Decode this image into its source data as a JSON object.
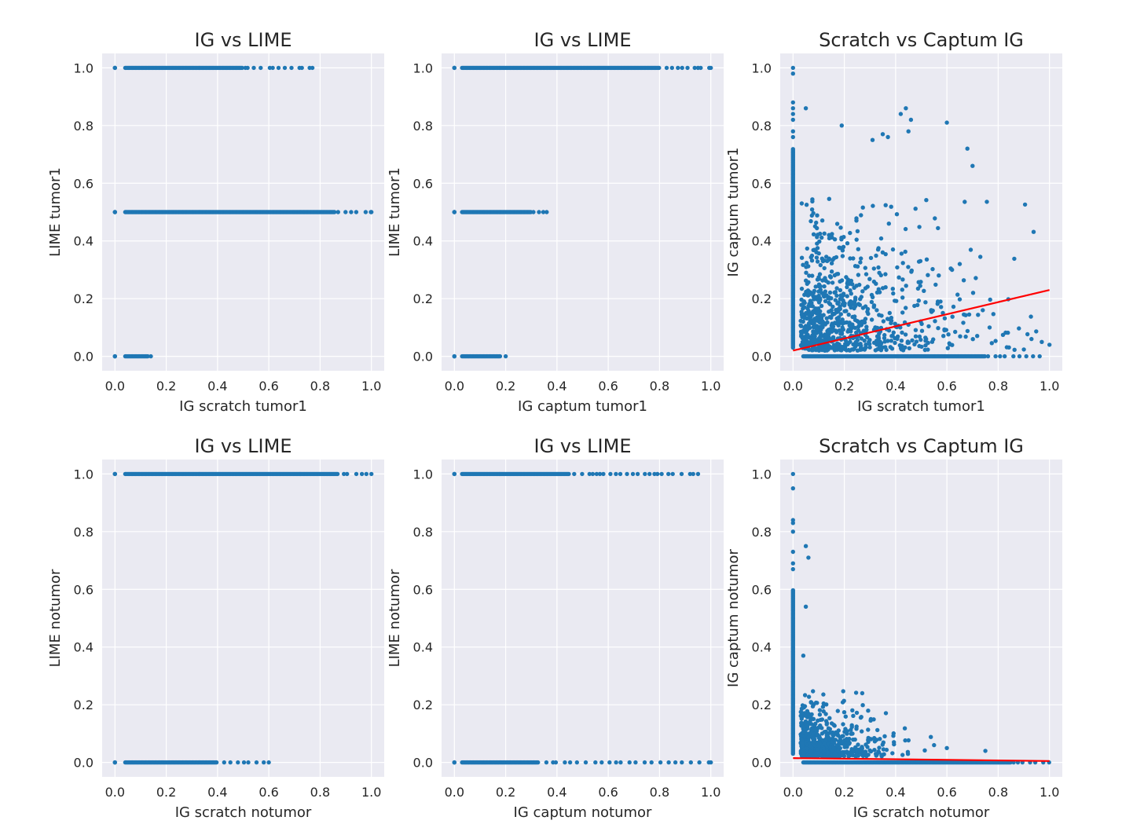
{
  "chart_data": [
    {
      "type": "scatter",
      "title": "IG vs LIME",
      "xlabel": "IG scratch tumor1",
      "ylabel": "LIME tumor1",
      "xlim": [
        -0.05,
        1.05
      ],
      "ylim": [
        -0.05,
        1.05
      ],
      "xticks": [
        "0.0",
        "0.2",
        "0.4",
        "0.6",
        "0.8",
        "1.0"
      ],
      "yticks": [
        "0.0",
        "0.2",
        "0.4",
        "0.6",
        "0.8",
        "1.0"
      ],
      "grid": true,
      "color": "#1f77b4",
      "bands": [
        {
          "y": 1.0,
          "x_range": [
            0.04,
            0.5
          ],
          "sparse_to": 0.77
        },
        {
          "y": 0.5,
          "x_range": [
            0.04,
            0.86
          ],
          "sparse_to": 1.0
        },
        {
          "y": 0.0,
          "x_range": [
            0.04,
            0.13
          ],
          "sparse_to": 0.14
        }
      ],
      "clusters_at_x0": [
        0.0,
        0.5,
        1.0
      ]
    },
    {
      "type": "scatter",
      "title": "IG vs LIME",
      "xlabel": "IG captum tumor1",
      "ylabel": "LIME tumor1",
      "xlim": [
        -0.05,
        1.05
      ],
      "ylim": [
        -0.05,
        1.05
      ],
      "xticks": [
        "0.0",
        "0.2",
        "0.4",
        "0.6",
        "0.8",
        "1.0"
      ],
      "yticks": [
        "0.0",
        "0.2",
        "0.4",
        "0.6",
        "0.8",
        "1.0"
      ],
      "grid": true,
      "color": "#1f77b4",
      "bands": [
        {
          "y": 1.0,
          "x_range": [
            0.03,
            0.8
          ],
          "sparse_to": 1.0
        },
        {
          "y": 0.5,
          "x_range": [
            0.03,
            0.3
          ],
          "sparse_to": 0.36
        },
        {
          "y": 0.0,
          "x_range": [
            0.03,
            0.18
          ],
          "sparse_to": 0.2
        }
      ],
      "clusters_at_x0": [
        0.0,
        0.5,
        1.0
      ]
    },
    {
      "type": "scatter",
      "title": "Scratch vs Captum IG",
      "xlabel": "IG scratch tumor1",
      "ylabel": "IG captum tumor1",
      "xlim": [
        -0.05,
        1.05
      ],
      "ylim": [
        -0.05,
        1.05
      ],
      "xticks": [
        "0.0",
        "0.2",
        "0.4",
        "0.6",
        "0.8",
        "1.0"
      ],
      "yticks": [
        "0.0",
        "0.2",
        "0.4",
        "0.6",
        "0.8",
        "1.0"
      ],
      "grid": true,
      "color": "#1f77b4",
      "fit_line": {
        "x": [
          0.0,
          1.0
        ],
        "y": [
          0.02,
          0.23
        ],
        "color": "#ff0000"
      },
      "vertical_column": {
        "x": 0.0,
        "y_range": [
          0.03,
          0.72
        ],
        "outliers": [
          1.0,
          0.98,
          0.88,
          0.86,
          0.84,
          0.82,
          0.78,
          0.76
        ]
      },
      "zero_band": {
        "y": 0.0,
        "x_range": [
          0.04,
          0.75
        ],
        "sparse_to": 0.97
      },
      "cloud": {
        "x_range": [
          0.03,
          0.95
        ],
        "y_range": [
          0.02,
          0.55
        ],
        "density": "high near origin"
      },
      "outliers": [
        [
          0.05,
          0.86
        ],
        [
          0.19,
          0.8
        ],
        [
          0.42,
          0.84
        ],
        [
          0.44,
          0.86
        ],
        [
          0.46,
          0.82
        ],
        [
          0.6,
          0.81
        ],
        [
          0.35,
          0.77
        ],
        [
          0.37,
          0.76
        ],
        [
          0.31,
          0.75
        ],
        [
          0.45,
          0.78
        ],
        [
          0.68,
          0.72
        ],
        [
          0.7,
          0.66
        ],
        [
          0.65,
          0.32
        ],
        [
          0.62,
          0.3
        ],
        [
          0.74,
          0.16
        ],
        [
          0.93,
          0.06
        ],
        [
          0.97,
          0.05
        ],
        [
          1.0,
          0.04
        ]
      ]
    },
    {
      "type": "scatter",
      "title": "IG vs LIME",
      "xlabel": "IG scratch notumor",
      "ylabel": "LIME notumor",
      "xlim": [
        -0.05,
        1.05
      ],
      "ylim": [
        -0.05,
        1.05
      ],
      "xticks": [
        "0.0",
        "0.2",
        "0.4",
        "0.6",
        "0.8",
        "1.0"
      ],
      "yticks": [
        "0.0",
        "0.2",
        "0.4",
        "0.6",
        "0.8",
        "1.0"
      ],
      "grid": true,
      "color": "#1f77b4",
      "bands": [
        {
          "y": 1.0,
          "x_range": [
            0.04,
            0.87
          ],
          "sparse_to": 1.0
        },
        {
          "y": 0.0,
          "x_range": [
            0.04,
            0.4
          ],
          "sparse_to": 0.6
        }
      ],
      "clusters_at_x0": [
        0.0,
        1.0
      ]
    },
    {
      "type": "scatter",
      "title": "IG vs LIME",
      "xlabel": "IG captum notumor",
      "ylabel": "LIME notumor",
      "xlim": [
        -0.05,
        1.05
      ],
      "ylim": [
        -0.05,
        1.05
      ],
      "xticks": [
        "0.0",
        "0.2",
        "0.4",
        "0.6",
        "0.8",
        "1.0"
      ],
      "yticks": [
        "0.0",
        "0.2",
        "0.4",
        "0.6",
        "0.8",
        "1.0"
      ],
      "grid": true,
      "color": "#1f77b4",
      "bands": [
        {
          "y": 1.0,
          "x_range": [
            0.03,
            0.45
          ],
          "sparse_to": 0.95
        },
        {
          "y": 0.0,
          "x_range": [
            0.03,
            0.33
          ],
          "sparse_to": 1.0
        }
      ],
      "clusters_at_x0": [
        0.0,
        1.0
      ]
    },
    {
      "type": "scatter",
      "title": "Scratch vs Captum IG",
      "xlabel": "IG scratch notumor",
      "ylabel": "IG captum notumor",
      "xlim": [
        -0.05,
        1.05
      ],
      "ylim": [
        -0.05,
        1.05
      ],
      "xticks": [
        "0.0",
        "0.2",
        "0.4",
        "0.6",
        "0.8",
        "1.0"
      ],
      "yticks": [
        "0.0",
        "0.2",
        "0.4",
        "0.6",
        "0.8",
        "1.0"
      ],
      "grid": true,
      "color": "#1f77b4",
      "fit_line": {
        "x": [
          0.0,
          1.0
        ],
        "y": [
          0.015,
          0.005
        ],
        "color": "#ff0000"
      },
      "vertical_column": {
        "x": 0.0,
        "y_range": [
          0.03,
          0.6
        ],
        "outliers": [
          1.0,
          0.95,
          0.84,
          0.83,
          0.8,
          0.73,
          0.69,
          0.67
        ]
      },
      "zero_band": {
        "y": 0.0,
        "x_range": [
          0.04,
          0.85
        ],
        "sparse_to": 1.0
      },
      "cloud": {
        "x_range": [
          0.03,
          0.55
        ],
        "y_range": [
          0.02,
          0.25
        ],
        "density": "high near origin"
      },
      "outliers": [
        [
          0.05,
          0.75
        ],
        [
          0.06,
          0.71
        ],
        [
          0.05,
          0.54
        ],
        [
          0.04,
          0.37
        ],
        [
          0.27,
          0.24
        ],
        [
          0.75,
          0.04
        ],
        [
          0.55,
          0.06
        ],
        [
          0.6,
          0.05
        ]
      ]
    }
  ]
}
